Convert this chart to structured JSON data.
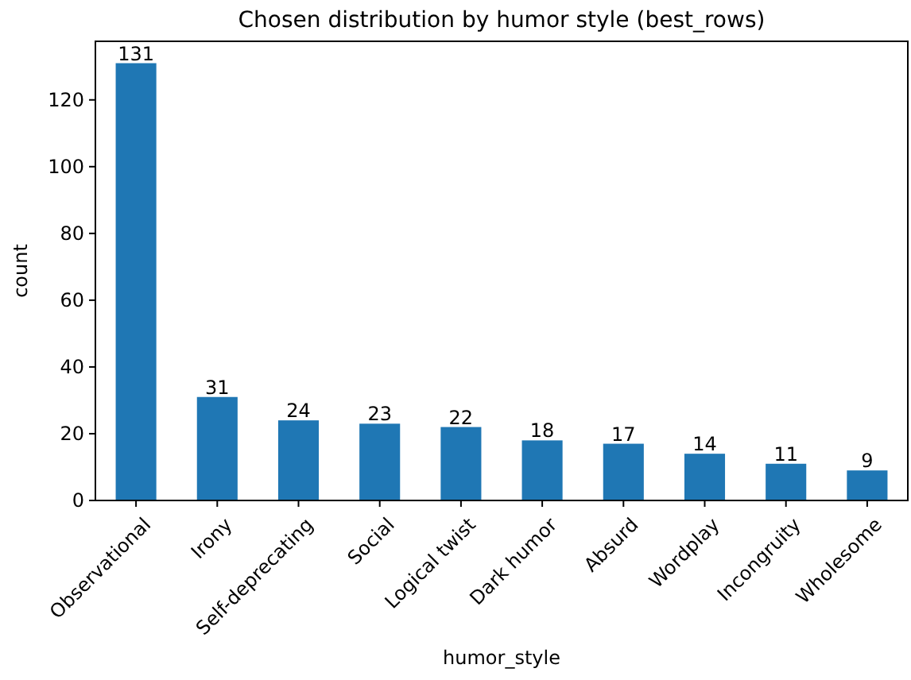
{
  "chart_data": {
    "type": "bar",
    "title": "Chosen distribution by humor style (best_rows)",
    "xlabel": "humor_style",
    "ylabel": "count",
    "categories": [
      "Observational",
      "Irony",
      "Self-deprecating",
      "Social",
      "Logical twist",
      "Dark humor",
      "Absurd",
      "Wordplay",
      "Incongruity",
      "Wholesome"
    ],
    "values": [
      131,
      31,
      24,
      23,
      22,
      18,
      17,
      14,
      11,
      9
    ],
    "color": "#1f77b4",
    "ylim": [
      0,
      137.55
    ],
    "yticks": [
      0,
      20,
      40,
      60,
      80,
      100,
      120
    ],
    "data_labels": true
  }
}
